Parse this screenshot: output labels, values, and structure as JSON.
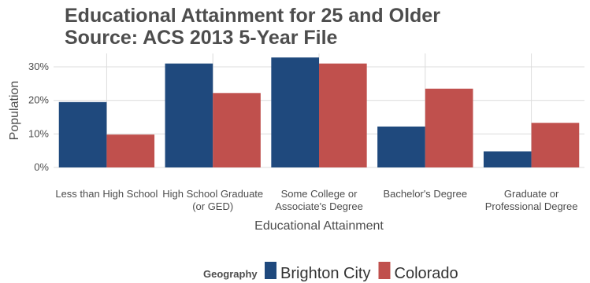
{
  "chart_data": {
    "type": "bar",
    "title": [
      "Educational Attainment for 25 and Older",
      "Source: ACS 2013 5-Year File"
    ],
    "xlabel": "Educational Attainment",
    "ylabel": "Population",
    "categories": [
      [
        "Less than High School"
      ],
      [
        "High School Graduate",
        "(or GED)"
      ],
      [
        "Some College or",
        "Associate's Degree"
      ],
      [
        "Bachelor's Degree"
      ],
      [
        "Graduate or",
        "Professional Degree"
      ]
    ],
    "series": [
      {
        "name": "Brighton City",
        "color": "#1f497d",
        "values": [
          0.195,
          0.31,
          0.328,
          0.122,
          0.048
        ]
      },
      {
        "name": "Colorado",
        "color": "#c0504d",
        "values": [
          0.098,
          0.222,
          0.31,
          0.235,
          0.133
        ]
      }
    ],
    "ylim": [
      0,
      0.34
    ],
    "yticks": [
      0,
      0.1,
      0.2,
      0.3
    ],
    "ytick_labels": [
      "0%",
      "10%",
      "20%",
      "30%"
    ],
    "grid": true,
    "legend": {
      "title": "Geography",
      "position": "bottom"
    }
  }
}
